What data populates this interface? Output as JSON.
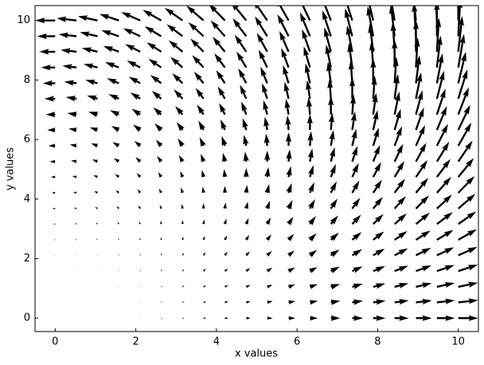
{
  "chart_data": {
    "type": "quiver",
    "xlabel": "x values",
    "ylabel": "y values",
    "color": "#000000",
    "xlim": [
      -0.5,
      10.5
    ],
    "ylim": [
      -0.45,
      10.5
    ],
    "xticks": [
      0,
      2,
      4,
      6,
      8,
      10
    ],
    "yticks": [
      0,
      2,
      4,
      6,
      8,
      10
    ],
    "x": [
      0,
      0.53,
      1.05,
      1.58,
      2.11,
      2.63,
      3.16,
      3.68,
      4.21,
      4.74,
      5.26,
      5.79,
      6.32,
      6.84,
      7.37,
      7.89,
      8.42,
      8.95,
      9.47,
      10
    ],
    "y": [
      0,
      0.53,
      1.05,
      1.58,
      2.11,
      2.63,
      3.16,
      3.68,
      4.21,
      4.74,
      5.26,
      5.79,
      6.32,
      6.84,
      7.37,
      7.89,
      8.42,
      8.95,
      9.47,
      10
    ],
    "u": [
      [
        0,
        0,
        1,
        2,
        4,
        7,
        10,
        14,
        18,
        22,
        28,
        34,
        40,
        47,
        54,
        62,
        71,
        80,
        90,
        100
      ],
      [
        0,
        0,
        1,
        2,
        4,
        7,
        10,
        14,
        18,
        22,
        28,
        34,
        40,
        47,
        54,
        62,
        71,
        80,
        90,
        100
      ],
      [
        -1,
        -1,
        0,
        1,
        3,
        6,
        9,
        13,
        17,
        21,
        27,
        33,
        39,
        46,
        53,
        61,
        70,
        79,
        89,
        99
      ],
      [
        -2,
        -2,
        -1,
        0,
        2,
        5,
        8,
        12,
        16,
        20,
        26,
        32,
        38,
        45,
        52,
        60,
        69,
        78,
        88,
        98
      ],
      [
        -4,
        -4,
        -3,
        -2,
        0,
        3,
        6,
        10,
        14,
        18,
        24,
        30,
        36,
        43,
        50,
        58,
        67,
        76,
        86,
        96
      ],
      [
        -7,
        -7,
        -6,
        -5,
        -3,
        0,
        3,
        7,
        11,
        15,
        21,
        27,
        33,
        40,
        47,
        55,
        64,
        73,
        83,
        93
      ],
      [
        -10,
        -10,
        -9,
        -8,
        -6,
        -3,
        0,
        4,
        8,
        12,
        18,
        24,
        30,
        37,
        44,
        52,
        61,
        70,
        80,
        90
      ],
      [
        -14,
        -14,
        -13,
        -12,
        -10,
        -7,
        -4,
        0,
        4,
        8,
        14,
        20,
        26,
        33,
        40,
        48,
        57,
        66,
        76,
        86
      ],
      [
        -18,
        -18,
        -17,
        -16,
        -14,
        -11,
        -8,
        -4,
        0,
        4,
        10,
        16,
        22,
        29,
        36,
        44,
        53,
        62,
        72,
        82
      ],
      [
        -22,
        -22,
        -21,
        -20,
        -18,
        -15,
        -12,
        -8,
        -4,
        0,
        6,
        12,
        18,
        25,
        32,
        40,
        49,
        58,
        68,
        78
      ],
      [
        -28,
        -28,
        -27,
        -26,
        -24,
        -21,
        -18,
        -14,
        -10,
        -6,
        0,
        6,
        12,
        19,
        26,
        34,
        43,
        52,
        62,
        72
      ],
      [
        -34,
        -34,
        -33,
        -32,
        -30,
        -27,
        -24,
        -20,
        -16,
        -12,
        -6,
        0,
        6,
        13,
        20,
        28,
        37,
        46,
        56,
        66
      ],
      [
        -40,
        -40,
        -39,
        -38,
        -36,
        -33,
        -30,
        -26,
        -22,
        -18,
        -12,
        -6,
        0,
        7,
        14,
        22,
        31,
        40,
        50,
        60
      ],
      [
        -47,
        -47,
        -46,
        -45,
        -43,
        -40,
        -37,
        -33,
        -29,
        -25,
        -19,
        -13,
        -7,
        0,
        7,
        15,
        24,
        33,
        43,
        53
      ],
      [
        -54,
        -54,
        -53,
        -52,
        -50,
        -47,
        -44,
        -40,
        -36,
        -32,
        -26,
        -20,
        -14,
        -7,
        0,
        8,
        17,
        26,
        36,
        46
      ],
      [
        -62,
        -62,
        -61,
        -60,
        -58,
        -55,
        -52,
        -48,
        -44,
        -40,
        -34,
        -28,
        -22,
        -15,
        -8,
        0,
        9,
        18,
        28,
        38
      ],
      [
        -71,
        -71,
        -70,
        -69,
        -67,
        -64,
        -61,
        -57,
        -53,
        -49,
        -43,
        -37,
        -31,
        -24,
        -17,
        -9,
        0,
        9,
        19,
        29
      ],
      [
        -80,
        -80,
        -79,
        -78,
        -76,
        -73,
        -70,
        -66,
        -62,
        -58,
        -52,
        -46,
        -40,
        -33,
        -26,
        -18,
        -9,
        0,
        10,
        20
      ],
      [
        -90,
        -90,
        -89,
        -88,
        -86,
        -83,
        -80,
        -76,
        -72,
        -68,
        -62,
        -56,
        -50,
        -43,
        -36,
        -28,
        -19,
        -10,
        0,
        10
      ],
      [
        -100,
        -100,
        -99,
        -98,
        -96,
        -93,
        -90,
        -86,
        -82,
        -78,
        -72,
        -66,
        -60,
        -53,
        -46,
        -38,
        -29,
        -20,
        -10,
        0
      ]
    ],
    "v": [
      [
        0,
        0,
        0,
        0,
        0,
        0,
        0,
        0,
        0,
        0,
        0,
        0,
        0,
        0,
        0,
        0,
        0,
        0,
        0,
        0
      ],
      [
        0,
        1,
        1,
        2,
        2,
        3,
        3,
        4,
        4,
        5,
        6,
        6,
        7,
        7,
        8,
        8,
        9,
        9,
        10,
        11
      ],
      [
        0,
        1,
        2,
        3,
        4,
        6,
        7,
        8,
        9,
        10,
        11,
        12,
        13,
        14,
        16,
        17,
        18,
        19,
        20,
        21
      ],
      [
        0,
        2,
        3,
        5,
        7,
        8,
        10,
        12,
        13,
        15,
        17,
        18,
        20,
        22,
        23,
        25,
        27,
        28,
        30,
        32
      ],
      [
        0,
        2,
        4,
        7,
        9,
        11,
        13,
        16,
        18,
        20,
        22,
        24,
        27,
        29,
        31,
        33,
        35,
        38,
        40,
        42
      ],
      [
        0,
        3,
        6,
        8,
        11,
        14,
        17,
        19,
        22,
        25,
        28,
        30,
        33,
        36,
        39,
        42,
        44,
        47,
        50,
        53
      ],
      [
        0,
        3,
        7,
        10,
        13,
        17,
        20,
        23,
        27,
        30,
        33,
        37,
        40,
        43,
        47,
        50,
        53,
        57,
        60,
        63
      ],
      [
        0,
        4,
        8,
        12,
        16,
        19,
        23,
        27,
        31,
        35,
        39,
        43,
        47,
        50,
        54,
        58,
        62,
        66,
        70,
        74
      ],
      [
        0,
        4,
        9,
        13,
        18,
        22,
        27,
        31,
        35,
        40,
        44,
        49,
        53,
        58,
        62,
        66,
        71,
        75,
        80,
        84
      ],
      [
        0,
        5,
        10,
        15,
        20,
        25,
        30,
        35,
        40,
        45,
        50,
        55,
        60,
        65,
        70,
        75,
        80,
        85,
        90,
        95
      ],
      [
        0,
        6,
        11,
        17,
        22,
        28,
        33,
        39,
        44,
        50,
        55,
        61,
        66,
        72,
        78,
        83,
        89,
        94,
        100,
        105
      ],
      [
        0,
        6,
        12,
        18,
        24,
        30,
        37,
        43,
        49,
        55,
        61,
        67,
        73,
        79,
        85,
        91,
        98,
        104,
        110,
        116
      ],
      [
        0,
        7,
        13,
        20,
        27,
        33,
        40,
        47,
        53,
        60,
        66,
        73,
        80,
        86,
        93,
        100,
        106,
        113,
        120,
        126
      ],
      [
        0,
        7,
        14,
        22,
        29,
        36,
        43,
        50,
        58,
        65,
        72,
        79,
        86,
        94,
        101,
        108,
        115,
        122,
        130,
        137
      ],
      [
        0,
        8,
        16,
        23,
        31,
        39,
        47,
        54,
        62,
        70,
        78,
        85,
        93,
        101,
        109,
        116,
        124,
        132,
        140,
        147
      ],
      [
        0,
        8,
        17,
        25,
        33,
        42,
        50,
        58,
        66,
        75,
        83,
        91,
        100,
        108,
        116,
        125,
        133,
        141,
        150,
        158
      ],
      [
        0,
        9,
        18,
        27,
        35,
        44,
        53,
        62,
        71,
        80,
        89,
        98,
        106,
        115,
        124,
        133,
        142,
        151,
        160,
        168
      ],
      [
        0,
        9,
        19,
        28,
        38,
        47,
        57,
        66,
        75,
        85,
        94,
        104,
        113,
        122,
        132,
        141,
        151,
        160,
        170,
        179
      ],
      [
        0,
        10,
        20,
        30,
        40,
        50,
        60,
        70,
        80,
        90,
        100,
        110,
        120,
        130,
        140,
        150,
        160,
        170,
        179,
        189
      ],
      [
        0,
        11,
        21,
        32,
        42,
        53,
        63,
        74,
        84,
        95,
        105,
        116,
        126,
        137,
        147,
        158,
        168,
        179,
        189,
        200
      ]
    ]
  }
}
